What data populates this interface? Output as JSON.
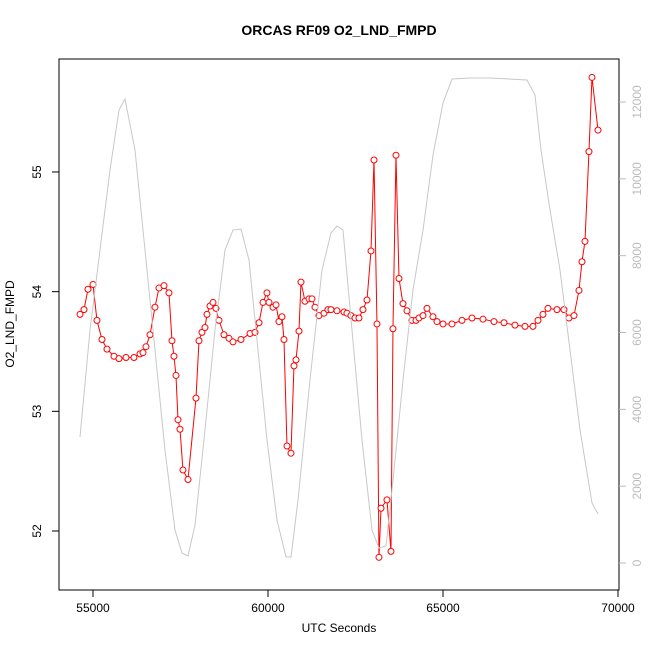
{
  "chart_data": {
    "type": "line",
    "title": "ORCAS RF09 O2_LND_FMPD",
    "xlabel": "UTC Seconds",
    "ylabel": "O2_LND_FMPD",
    "xlim": [
      54029,
      70029
    ],
    "xticks": [
      55000,
      60000,
      65000,
      70000
    ],
    "ylim": [
      51.507,
      55.944
    ],
    "yticks": [
      52,
      53,
      54,
      55
    ],
    "y2lim": [
      -703,
      13119
    ],
    "y2ticks": [
      0,
      2000,
      4000,
      6000,
      8000,
      10000,
      12000
    ],
    "grid": false,
    "series": [
      {
        "color": "#ff0000",
        "markers": true,
        "x": [
          54629,
          54743,
          54857,
          55000,
          55114,
          55257,
          55400,
          55600,
          55743,
          55943,
          56171,
          56343,
          56429,
          56514,
          56629,
          56771,
          56886,
          57029,
          57171,
          57257,
          57314,
          57371,
          57429,
          57486,
          57571,
          57714,
          57943,
          58029,
          58114,
          58200,
          58257,
          58343,
          58429,
          58514,
          58600,
          58743,
          58886,
          59000,
          59229,
          59486,
          59629,
          59743,
          59857,
          59971,
          60029,
          60143,
          60229,
          60314,
          60400,
          60457,
          60543,
          60657,
          60743,
          60800,
          60886,
          60943,
          61057,
          61171,
          61257,
          61343,
          61457,
          61600,
          61714,
          61800,
          61971,
          62171,
          62257,
          62371,
          62486,
          62600,
          62714,
          62829,
          62943,
          63029,
          63114,
          63171,
          63229,
          63400,
          63514,
          63571,
          63657,
          63743,
          63857,
          63971,
          64114,
          64229,
          64314,
          64429,
          64543,
          64714,
          64829,
          65000,
          65257,
          65543,
          65829,
          66143,
          66457,
          66743,
          67057,
          67343,
          67571,
          67714,
          67857,
          68000,
          68257,
          68457,
          68600,
          68743,
          68886,
          68971,
          69057,
          69171,
          69257,
          69429
        ],
        "values": [
          53.81,
          53.85,
          54.02,
          54.06,
          53.76,
          53.6,
          53.52,
          53.46,
          53.44,
          53.45,
          53.45,
          53.48,
          53.49,
          53.54,
          53.64,
          53.87,
          54.03,
          54.05,
          53.99,
          53.59,
          53.46,
          53.3,
          52.93,
          52.85,
          52.51,
          52.43,
          53.11,
          53.59,
          53.66,
          53.7,
          53.81,
          53.88,
          53.91,
          53.86,
          53.76,
          53.64,
          53.61,
          53.58,
          53.6,
          53.65,
          53.66,
          53.74,
          53.91,
          53.99,
          53.91,
          53.87,
          53.89,
          53.75,
          53.79,
          53.6,
          52.71,
          52.65,
          53.38,
          53.43,
          53.67,
          54.08,
          53.92,
          53.94,
          53.94,
          53.87,
          53.8,
          53.82,
          53.85,
          53.85,
          53.84,
          53.83,
          53.82,
          53.8,
          53.78,
          53.78,
          53.85,
          53.93,
          54.34,
          55.1,
          53.73,
          51.78,
          52.19,
          52.26,
          51.83,
          53.69,
          55.14,
          54.11,
          53.9,
          53.84,
          53.76,
          53.76,
          53.78,
          53.8,
          53.86,
          53.79,
          53.75,
          53.73,
          53.73,
          53.76,
          53.78,
          53.77,
          53.75,
          53.74,
          53.72,
          53.71,
          53.71,
          53.76,
          53.81,
          53.86,
          53.85,
          53.85,
          53.78,
          53.8,
          54.01,
          54.25,
          54.42,
          55.17,
          55.79,
          55.35
        ]
      },
      {
        "color": "#c8c8c8",
        "axis": "y2",
        "markers": false,
        "x": [
          54629,
          54915,
          55200,
          55486,
          55743,
          55915,
          56200,
          56486,
          56772,
          57057,
          57343,
          57543,
          57715,
          57915,
          58200,
          58486,
          58772,
          59000,
          59229,
          59458,
          59686,
          59972,
          60257,
          60515,
          60658,
          60858,
          61200,
          61543,
          61800,
          61972,
          62143,
          62400,
          62686,
          62972,
          63172,
          63372,
          63572,
          63858,
          64143,
          64429,
          64715,
          65000,
          65258,
          65772,
          66343,
          67400,
          67629,
          67800,
          68058,
          68343,
          68629,
          68915,
          69258,
          69429
        ],
        "values": [
          3280,
          6065,
          8147,
          10229,
          11791,
          12077,
          10750,
          8147,
          5544,
          2941,
          859,
          260,
          182,
          989,
          3462,
          6065,
          8147,
          8667,
          8693,
          7886,
          5804,
          3201,
          1119,
          156,
          156,
          1640,
          4763,
          7626,
          8589,
          8771,
          8667,
          6065,
          3201,
          859,
          390,
          442,
          2160,
          4763,
          7106,
          8667,
          10620,
          11973,
          12598,
          12624,
          12624,
          12572,
          12181,
          10750,
          9188,
          7626,
          5544,
          3462,
          1562,
          1275
        ]
      }
    ]
  }
}
